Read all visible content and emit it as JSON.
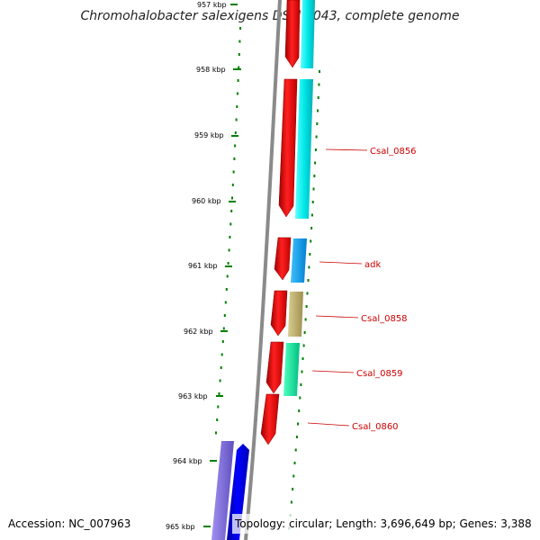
{
  "title": "Chromohalobacter salexigens DSM 3043, complete genome",
  "ticks": [
    {
      "label": "957 kbp"
    },
    {
      "label": "958 kbp"
    },
    {
      "label": "959 kbp"
    },
    {
      "label": "960 kbp"
    },
    {
      "label": "961 kbp"
    },
    {
      "label": "962 kbp"
    },
    {
      "label": "963 kbp"
    },
    {
      "label": "964 kbp"
    },
    {
      "label": "965 kbp"
    }
  ],
  "gene_labels": [
    {
      "text": "Csal_0856"
    },
    {
      "text": "adk"
    },
    {
      "text": "Csal_0858"
    },
    {
      "text": "Csal_0859"
    },
    {
      "text": "Csal_0860"
    }
  ],
  "footer": {
    "accession": "Accession: NC_007963",
    "topology": "Topology: circular; Length: 3,696,649 bp; Genes: 3,388"
  },
  "colors": {
    "cds": "#ff0000",
    "gene_cyan": "#00f0f0",
    "gene_blue_small": "#00a0f0",
    "gene_olive": "#c0b070",
    "gene_green": "#00f0a0",
    "gene_blue": "#0000ee",
    "gene_purple": "#7a68d8",
    "backbone": "#888888",
    "ticks": "#008000",
    "label": "#cc0000"
  }
}
